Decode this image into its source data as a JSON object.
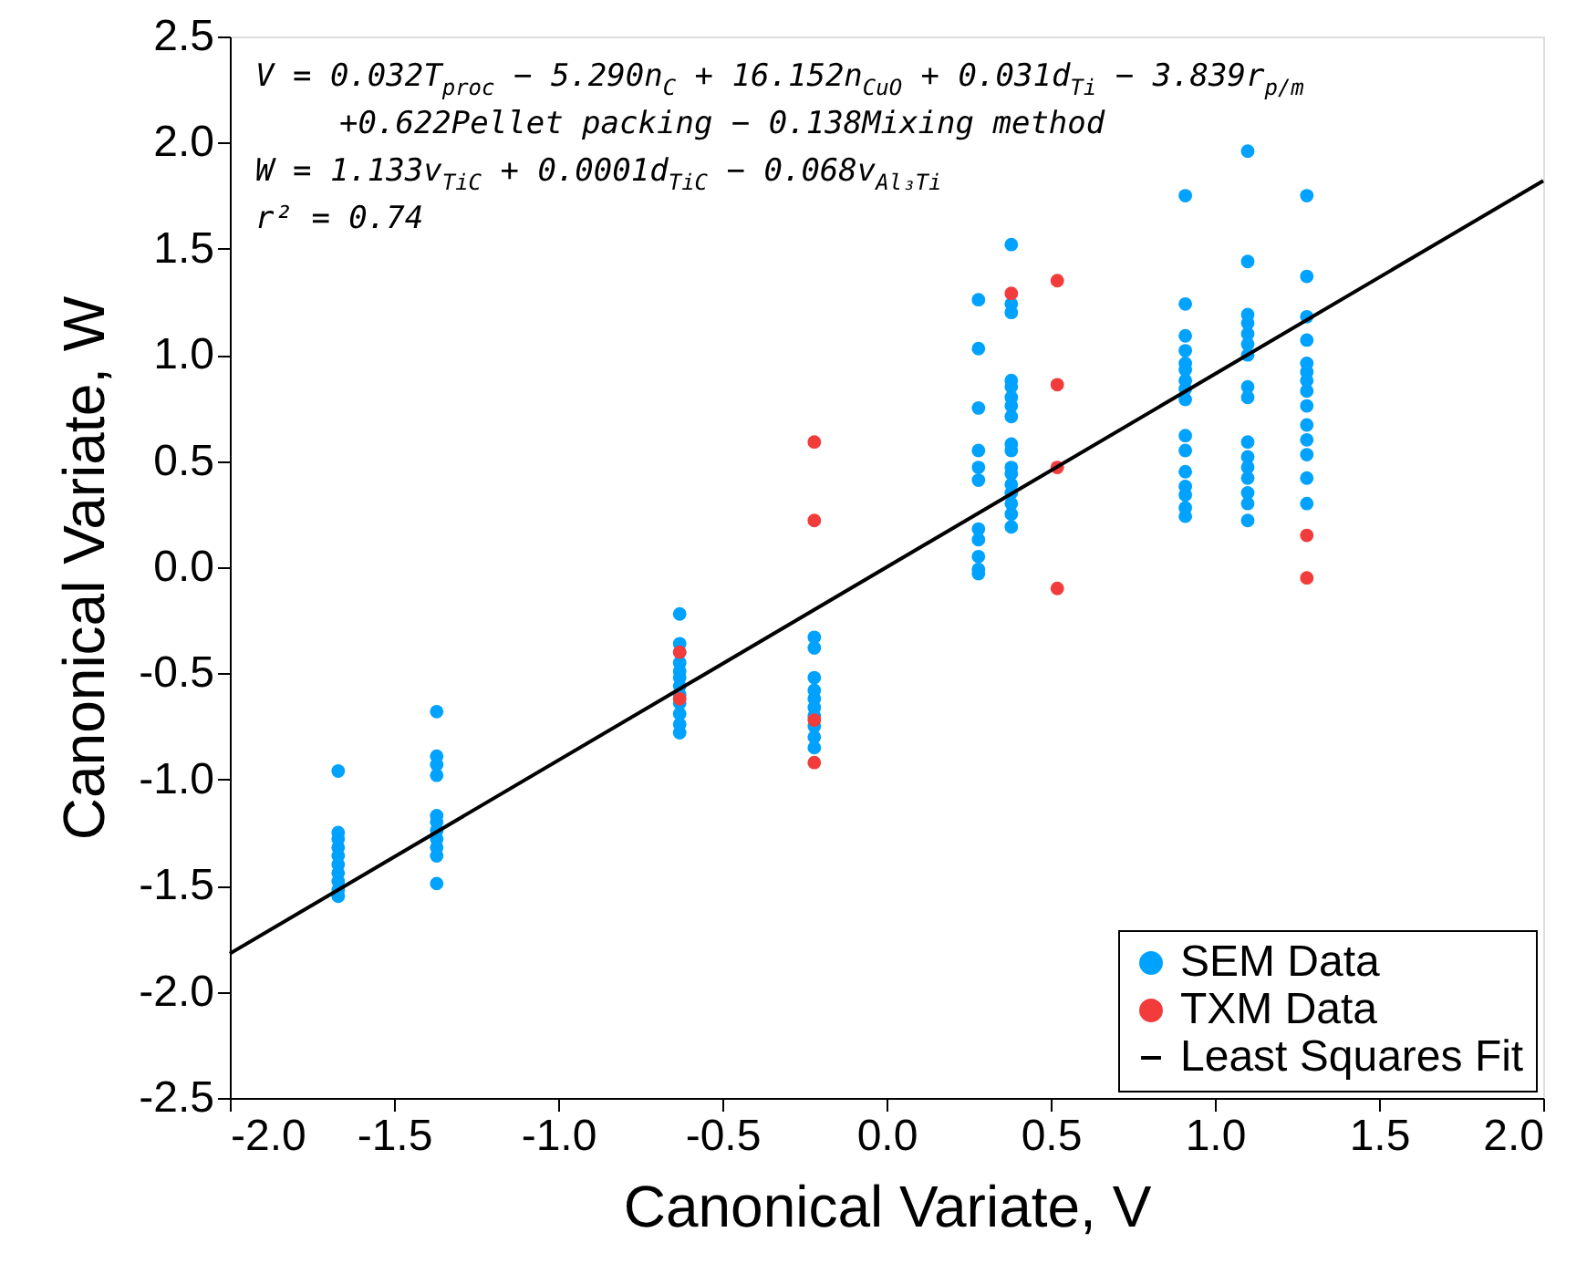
{
  "chart_data": {
    "type": "scatter",
    "xlabel": "Canonical Variate, V",
    "ylabel": "Canonical Variate, W",
    "annotations": [
      "V = 0.032T$_{proc}$ − 5.290n$_{C}$ + 16.152n$_{CuO}$ + 0.031d$_{Ti}$ − 3.839r$_{p/m}$",
      "+0.622Pellet packing − 0.138Mixing method",
      "W = 1.133v$_{TiC}$ + 0.0001d$_{TiC}$ − 0.068v$_{Al₃Ti}$",
      "r² = 0.74"
    ],
    "series": [
      {
        "name": "SEM Data",
        "color": "#00a2ff",
        "x": [
          -1.67,
          -1.67,
          -1.67,
          -1.67,
          -1.67,
          -1.67,
          -1.67,
          -1.67,
          -1.67,
          -1.67,
          -1.37,
          -1.37,
          -1.37,
          -1.37,
          -1.37,
          -1.37,
          -1.37,
          -1.37,
          -1.37,
          -1.37,
          -1.37,
          -0.63,
          -0.63,
          -0.63,
          -0.63,
          -0.63,
          -0.63,
          -0.63,
          -0.63,
          -0.63,
          -0.63,
          -0.63,
          -0.63,
          -0.22,
          -0.22,
          -0.22,
          -0.22,
          -0.22,
          -0.22,
          -0.22,
          -0.22,
          -0.22,
          -0.22,
          0.28,
          0.28,
          0.28,
          0.28,
          0.28,
          0.28,
          0.28,
          0.28,
          0.28,
          0.28,
          0.28,
          0.38,
          0.38,
          0.38,
          0.38,
          0.38,
          0.38,
          0.38,
          0.38,
          0.38,
          0.38,
          0.38,
          0.38,
          0.38,
          0.38,
          0.38,
          0.38,
          0.38,
          0.91,
          0.91,
          0.91,
          0.91,
          0.91,
          0.91,
          0.91,
          0.91,
          0.91,
          0.91,
          0.91,
          0.91,
          0.91,
          0.91,
          0.91,
          0.91,
          1.1,
          1.1,
          1.1,
          1.1,
          1.1,
          1.1,
          1.1,
          1.1,
          1.1,
          1.1,
          1.1,
          1.1,
          1.1,
          1.1,
          1.1,
          1.1,
          1.28,
          1.28,
          1.28,
          1.28,
          1.28,
          1.28,
          1.28,
          1.28,
          1.28,
          1.28,
          1.28,
          1.28,
          1.28,
          1.28
        ],
        "values": [
          -0.96,
          -1.25,
          -1.28,
          -1.32,
          -1.36,
          -1.4,
          -1.44,
          -1.48,
          -1.52,
          -1.55,
          -0.68,
          -0.89,
          -0.93,
          -0.98,
          -1.17,
          -1.2,
          -1.24,
          -1.28,
          -1.32,
          -1.36,
          -1.49,
          -0.22,
          -0.36,
          -0.4,
          -0.45,
          -0.49,
          -0.52,
          -0.56,
          -0.6,
          -0.64,
          -0.69,
          -0.74,
          -0.78,
          -0.33,
          -0.38,
          -0.52,
          -0.58,
          -0.62,
          -0.66,
          -0.7,
          -0.75,
          -0.8,
          -0.85,
          1.26,
          1.03,
          0.75,
          0.55,
          0.47,
          0.41,
          0.18,
          0.13,
          0.05,
          -0.01,
          -0.03,
          1.52,
          1.24,
          1.2,
          0.88,
          0.85,
          0.8,
          0.76,
          0.71,
          0.58,
          0.55,
          0.47,
          0.44,
          0.39,
          0.35,
          0.3,
          0.25,
          0.19,
          1.75,
          1.24,
          1.09,
          1.02,
          0.96,
          0.93,
          0.88,
          0.84,
          0.79,
          0.62,
          0.55,
          0.45,
          0.38,
          0.34,
          0.28,
          0.24,
          1.96,
          1.44,
          1.19,
          1.15,
          1.1,
          1.05,
          1.0,
          0.85,
          0.8,
          0.59,
          0.52,
          0.47,
          0.42,
          0.35,
          0.3,
          0.22,
          1.75,
          1.37,
          1.18,
          1.07,
          0.96,
          0.92,
          0.88,
          0.83,
          0.76,
          0.67,
          0.6,
          0.53,
          0.42,
          0.3
        ]
      },
      {
        "name": "TXM Data",
        "color": "#f23c3c",
        "x": [
          -0.63,
          -0.63,
          -0.22,
          -0.22,
          -0.22,
          -0.22,
          0.38,
          0.52,
          0.52,
          0.52,
          0.52,
          1.28,
          1.28
        ],
        "values": [
          -0.4,
          -0.62,
          0.59,
          0.22,
          -0.72,
          -0.92,
          1.29,
          1.35,
          0.86,
          0.47,
          -0.1,
          0.15,
          -0.05
        ]
      },
      {
        "name": "Least Squares Fit",
        "type": "line",
        "color": "#000000",
        "x": [
          -2.0,
          2.0
        ],
        "values": [
          -1.82,
          1.82
        ],
        "line_style": "solid",
        "marker": "none"
      }
    ],
    "xlim": [
      -2.0,
      2.0
    ],
    "ylim": [
      -2.5,
      2.5
    ],
    "xticks": [
      {
        "value": -2.0,
        "label": "-2.0"
      },
      {
        "value": -1.5,
        "label": "-1.5"
      },
      {
        "value": -1.0,
        "label": "-1.0"
      },
      {
        "value": -0.5,
        "label": "-0.5"
      },
      {
        "value": 0.0,
        "label": "0.0"
      },
      {
        "value": 0.5,
        "label": "0.5"
      },
      {
        "value": 1.0,
        "label": "1.0"
      },
      {
        "value": 1.5,
        "label": "1.5"
      },
      {
        "value": 2.0,
        "label": "2.0"
      }
    ],
    "yticks": [
      {
        "value": -2.5,
        "label": "-2.5"
      },
      {
        "value": -2.0,
        "label": "-2.0"
      },
      {
        "value": -1.5,
        "label": "-1.5"
      },
      {
        "value": -1.0,
        "label": "-1.0"
      },
      {
        "value": -0.5,
        "label": "-0.5"
      },
      {
        "value": 0.0,
        "label": "0.0"
      },
      {
        "value": 0.5,
        "label": "0.5"
      },
      {
        "value": 1.0,
        "label": "1.0"
      },
      {
        "value": 1.5,
        "label": "1.5"
      },
      {
        "value": 2.0,
        "label": "2.0"
      },
      {
        "value": 2.5,
        "label": "2.5"
      }
    ],
    "marker": "circle",
    "grid": false,
    "legend": "bottom right"
  }
}
